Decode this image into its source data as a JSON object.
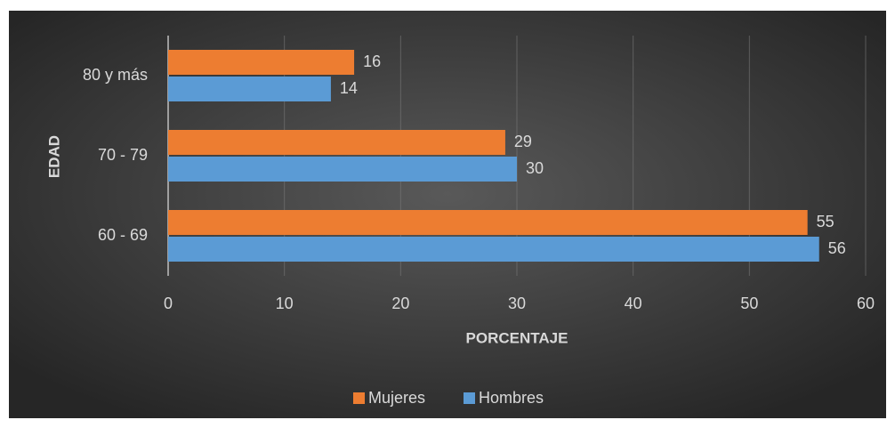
{
  "chart_data": {
    "type": "bar",
    "orientation": "horizontal",
    "categories": [
      "60 - 69",
      "70 - 79",
      "80 y más"
    ],
    "series": [
      {
        "name": "Mujeres",
        "color": "#ed7d31",
        "values": [
          55,
          29,
          16
        ]
      },
      {
        "name": "Hombres",
        "color": "#5b9bd5",
        "values": [
          56,
          30,
          14
        ]
      }
    ],
    "xlabel": "PORCENTAJE",
    "ylabel": "EDAD",
    "xlim": [
      0,
      60
    ],
    "xticks": [
      0,
      10,
      20,
      30,
      40,
      50,
      60
    ],
    "grid": true,
    "legend": "bottom"
  }
}
